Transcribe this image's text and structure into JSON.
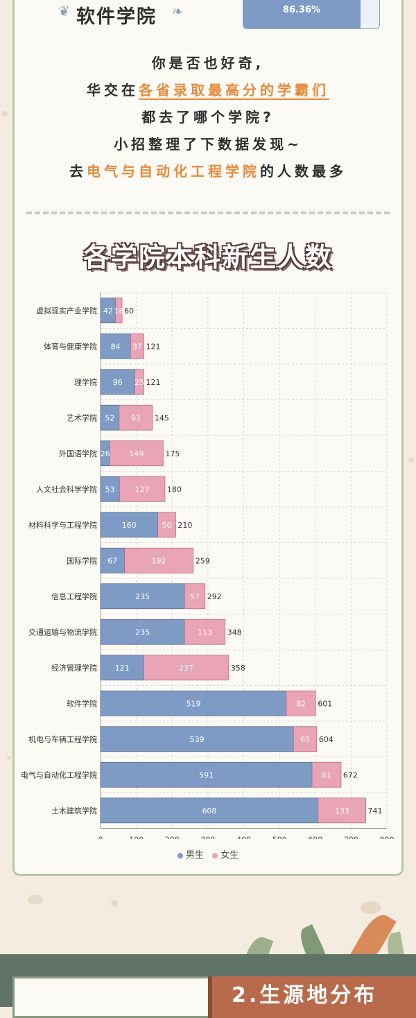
{
  "header": {
    "school": "软件学院",
    "percent": "86.36%",
    "percent_value": 86.36
  },
  "intro": {
    "line1": "你是否也好奇,",
    "line2_pre": "华交在",
    "line2_hl": "各省录取最高分的学霸们",
    "line3": "都去了哪个学院?",
    "line4": "小招整理了下数据发现~",
    "line5_pre": "去",
    "line5_hl": "电气与自动化工程学院",
    "line5_post": "的人数最多"
  },
  "chart_title": "各学院本科新生人数",
  "colors": {
    "male": "#7e9bc6",
    "female": "#e9a4b6",
    "accent": "#e8893a"
  },
  "chart_data": {
    "type": "bar",
    "orientation": "horizontal",
    "stacked": true,
    "title": "各学院本科新生人数",
    "categories": [
      "虚拟现实产业学院",
      "体育与健康学院",
      "理学院",
      "艺术学院",
      "外国语学院",
      "人文社会科学学院",
      "材料科学与工程学院",
      "国际学院",
      "信息工程学院",
      "交通运输与物流学院",
      "经济管理学院",
      "软件学院",
      "机电与车辆工程学院",
      "电气与自动化工程学院",
      "土木建筑学院"
    ],
    "series": [
      {
        "name": "男生",
        "values": [
          42,
          84,
          96,
          52,
          26,
          53,
          160,
          67,
          235,
          235,
          121,
          519,
          539,
          591,
          608
        ]
      },
      {
        "name": "女生",
        "values": [
          18,
          37,
          25,
          93,
          149,
          127,
          50,
          192,
          57,
          113,
          237,
          82,
          65,
          81,
          133
        ]
      }
    ],
    "totals": [
      60,
      121,
      121,
      145,
      175,
      180,
      210,
      259,
      292,
      348,
      358,
      601,
      604,
      672,
      741
    ],
    "xlim": [
      0,
      800
    ],
    "xticks": [
      "0",
      "100",
      "200",
      "300",
      "400",
      "500",
      "600",
      "700",
      "800"
    ],
    "grid": true,
    "legend": "bottom"
  },
  "section": {
    "label": "2.生源地分布"
  }
}
